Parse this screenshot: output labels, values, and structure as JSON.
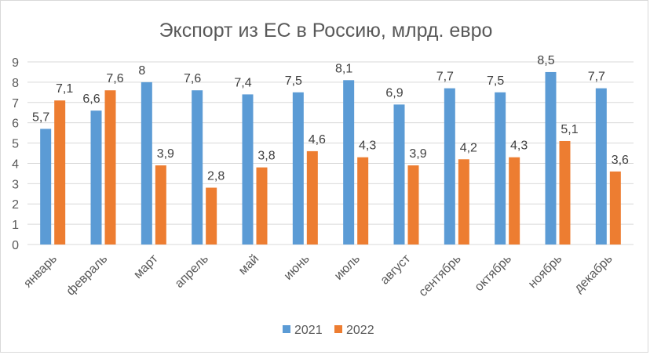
{
  "chart_data": {
    "type": "bar",
    "title": "Экспорт из ЕС в Россию, млрд. евро",
    "xlabel": "",
    "ylabel": "",
    "ylim": [
      0,
      9
    ],
    "yticks": [
      "0",
      "1",
      "2",
      "3",
      "4",
      "5",
      "6",
      "7",
      "8",
      "9"
    ],
    "grid": true,
    "legend_position": "bottom",
    "categories": [
      "январь",
      "февраль",
      "март",
      "апрель",
      "май",
      "июнь",
      "июль",
      "август",
      "сентябрь",
      "октябрь",
      "ноябрь",
      "декабрь"
    ],
    "series": [
      {
        "name": "2021",
        "color": "#5b9bd5",
        "values": [
          5.7,
          6.6,
          8.0,
          7.6,
          7.4,
          7.5,
          8.1,
          6.9,
          7.7,
          7.5,
          8.5,
          7.7
        ],
        "labels": [
          "5,7",
          "6,6",
          "8",
          "7,6",
          "7,4",
          "7,5",
          "8,1",
          "6,9",
          "7,7",
          "7,5",
          "8,5",
          "7,7"
        ]
      },
      {
        "name": "2022",
        "color": "#ed7d31",
        "values": [
          7.1,
          7.6,
          3.9,
          2.8,
          3.8,
          4.6,
          4.3,
          3.9,
          4.2,
          4.3,
          5.1,
          3.6
        ],
        "labels": [
          "7,1",
          "7,6",
          "3,9",
          "2,8",
          "3,8",
          "4,6",
          "4,3",
          "3,9",
          "4,2",
          "4,3",
          "5,1",
          "3,6"
        ]
      }
    ]
  }
}
